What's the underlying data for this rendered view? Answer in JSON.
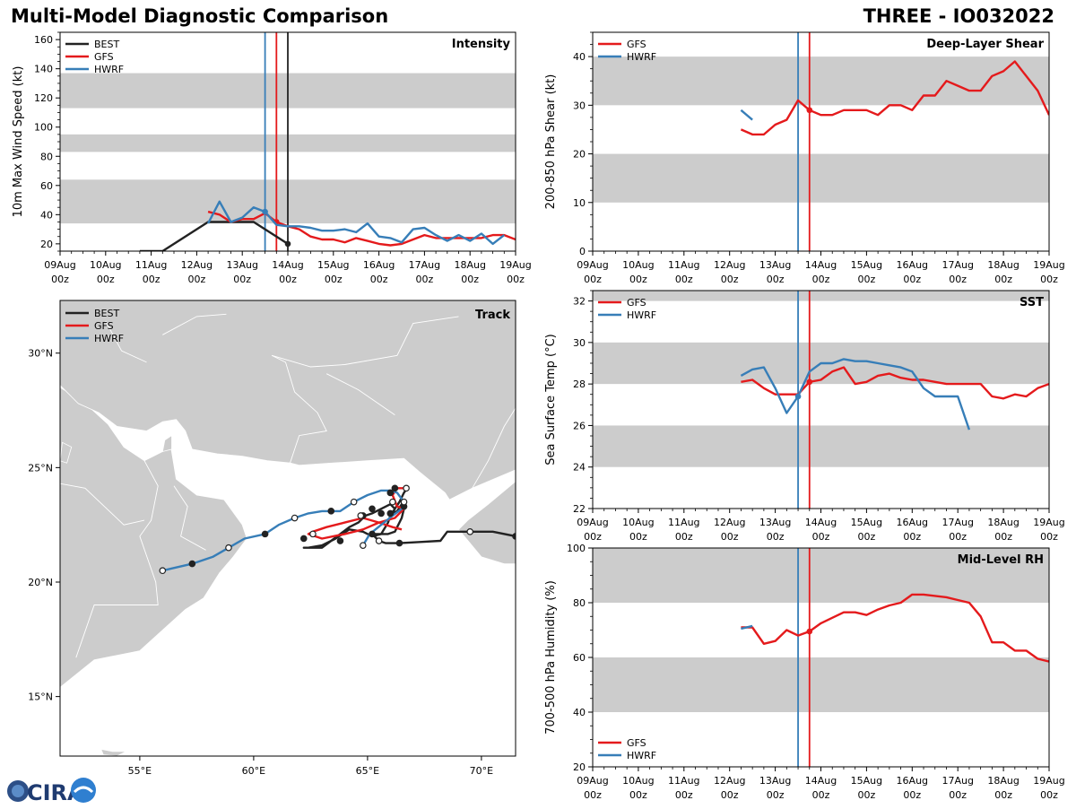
{
  "header": {
    "title": "Multi-Model Diagnostic Comparison",
    "storm": "THREE - IO032022"
  },
  "colors": {
    "BEST": "#222222",
    "GFS": "#e41a1c",
    "HWRF": "#377eb8",
    "band": "#cccccc",
    "land": "#cccccc"
  },
  "time_axis": {
    "labels": [
      [
        "09Aug",
        "00z"
      ],
      [
        "10Aug",
        "00z"
      ],
      [
        "11Aug",
        "00z"
      ],
      [
        "12Aug",
        "00z"
      ],
      [
        "13Aug",
        "00z"
      ],
      [
        "14Aug",
        "00z"
      ],
      [
        "15Aug",
        "00z"
      ],
      [
        "16Aug",
        "00z"
      ],
      [
        "17Aug",
        "00z"
      ],
      [
        "18Aug",
        "00z"
      ],
      [
        "19Aug",
        "00z"
      ]
    ]
  },
  "legend_labels": {
    "BEST": "BEST",
    "GFS": "GFS",
    "HWRF": "HWRF"
  },
  "logo": {
    "text": "CIRA"
  },
  "chart_data": [
    {
      "id": "intensity",
      "type": "line",
      "title": "Intensity",
      "ylabel": "10m Max Wind Speed (kt)",
      "xlim": [
        0,
        10
      ],
      "ylim": [
        15,
        165
      ],
      "yticks": [
        20,
        40,
        60,
        80,
        100,
        120,
        140,
        160
      ],
      "bands": [
        [
          34,
          64
        ],
        [
          83,
          95
        ],
        [
          113,
          137
        ]
      ],
      "vlines": [
        {
          "x": 4.5,
          "series": "HWRF"
        },
        {
          "x": 4.75,
          "series": "GFS"
        },
        {
          "x": 5.0,
          "series": "BEST"
        }
      ],
      "legend": [
        "BEST",
        "GFS",
        "HWRF"
      ],
      "legend_pos": "top-left",
      "series": [
        {
          "name": "BEST",
          "x": [
            1.75,
            2.25,
            3.25,
            4.25,
            5.0
          ],
          "y": [
            15,
            15,
            35,
            35,
            20
          ],
          "markers": [
            {
              "x": 5.0,
              "y": 20
            }
          ]
        },
        {
          "name": "GFS",
          "x": [
            3.25,
            3.5,
            3.75,
            4.0,
            4.25,
            4.5,
            4.75,
            5.0,
            5.25,
            5.5,
            5.75,
            6.0,
            6.25,
            6.5,
            6.75,
            7.0,
            7.25,
            7.5,
            7.75,
            8.0,
            8.25,
            8.5,
            8.75,
            9.0,
            9.25,
            9.5,
            9.75,
            10.0
          ],
          "y": [
            42,
            40,
            35,
            37,
            37,
            41,
            35,
            32,
            30,
            25,
            23,
            23,
            21,
            24,
            22,
            20,
            19,
            20,
            23,
            26,
            24,
            24,
            24,
            24,
            24,
            26,
            26,
            23
          ],
          "markers": [
            {
              "x": 4.75,
              "y": 35
            }
          ]
        },
        {
          "name": "HWRF",
          "x": [
            3.25,
            3.5,
            3.75,
            4.0,
            4.25,
            4.5,
            4.75,
            5.0,
            5.25,
            5.5,
            5.75,
            6.0,
            6.25,
            6.5,
            6.75,
            7.0,
            7.25,
            7.5,
            7.75,
            8.0,
            8.25,
            8.5,
            8.75,
            9.0,
            9.25,
            9.5,
            9.75
          ],
          "y": [
            34,
            49,
            35,
            38,
            45,
            42,
            33,
            32,
            32,
            31,
            29,
            29,
            30,
            28,
            34,
            25,
            24,
            21,
            30,
            31,
            26,
            22,
            26,
            22,
            27,
            20,
            26
          ],
          "markers": [
            {
              "x": 4.5,
              "y": 42
            }
          ]
        }
      ]
    },
    {
      "id": "shear",
      "type": "line",
      "title": "Deep-Layer Shear",
      "ylabel": "200-850 hPa Shear (kt)",
      "xlim": [
        0,
        10
      ],
      "ylim": [
        0,
        45
      ],
      "yticks": [
        0,
        10,
        20,
        30,
        40
      ],
      "bands": [
        [
          10,
          20
        ],
        [
          30,
          40
        ]
      ],
      "vlines": [
        {
          "x": 4.5,
          "series": "HWRF"
        },
        {
          "x": 4.75,
          "series": "GFS"
        }
      ],
      "legend": [
        "GFS",
        "HWRF"
      ],
      "legend_pos": "top-left",
      "series": [
        {
          "name": "GFS",
          "x": [
            3.25,
            3.5,
            3.75,
            4.0,
            4.25,
            4.5,
            4.75,
            5.0,
            5.25,
            5.5,
            5.75,
            6.0,
            6.25,
            6.5,
            6.75,
            7.0,
            7.25,
            7.5,
            7.75,
            8.0,
            8.25,
            8.5,
            8.75,
            9.0,
            9.25,
            9.5,
            9.75,
            10.0
          ],
          "y": [
            25,
            24,
            24,
            26,
            27,
            31,
            29,
            28,
            28,
            29,
            29,
            29,
            28,
            30,
            30,
            29,
            32,
            32,
            35,
            34,
            33,
            33,
            36,
            37,
            39,
            36,
            33,
            28
          ],
          "markers": [
            {
              "x": 4.75,
              "y": 29
            }
          ]
        },
        {
          "name": "HWRF",
          "x": [
            3.25,
            3.5
          ],
          "y": [
            29,
            27
          ],
          "markers": []
        }
      ]
    },
    {
      "id": "sst",
      "type": "line",
      "title": "SST",
      "ylabel": "Sea Surface Temp (°C)",
      "xlim": [
        0,
        10
      ],
      "ylim": [
        22,
        32.5
      ],
      "yticks": [
        22,
        24,
        26,
        28,
        30,
        32
      ],
      "bands": [
        [
          24,
          26
        ],
        [
          28,
          30
        ],
        [
          32,
          34
        ]
      ],
      "vlines": [
        {
          "x": 4.5,
          "series": "HWRF"
        },
        {
          "x": 4.75,
          "series": "GFS"
        }
      ],
      "legend": [
        "GFS",
        "HWRF"
      ],
      "legend_pos": "top-left",
      "series": [
        {
          "name": "GFS",
          "x": [
            3.25,
            3.5,
            3.75,
            4.0,
            4.25,
            4.5,
            4.75,
            5.0,
            5.25,
            5.5,
            5.75,
            6.0,
            6.25,
            6.5,
            6.75,
            7.0,
            7.25,
            7.5,
            7.75,
            8.0,
            8.25,
            8.5,
            8.75,
            9.0,
            9.25,
            9.5,
            9.75,
            10.0
          ],
          "y": [
            28.1,
            28.2,
            27.8,
            27.5,
            27.5,
            27.5,
            28.1,
            28.2,
            28.6,
            28.8,
            28.0,
            28.1,
            28.4,
            28.5,
            28.3,
            28.2,
            28.2,
            28.1,
            28.0,
            28.0,
            28.0,
            28.0,
            27.4,
            27.3,
            27.5,
            27.4,
            27.8,
            28.0
          ],
          "markers": [
            {
              "x": 4.75,
              "y": 28.1
            }
          ]
        },
        {
          "name": "HWRF",
          "x": [
            3.25,
            3.5,
            3.75,
            4.0,
            4.25,
            4.5,
            4.75,
            5.0,
            5.25,
            5.5,
            5.75,
            6.0,
            6.25,
            6.5,
            6.75,
            7.0,
            7.25,
            7.5,
            7.75,
            8.0,
            8.25
          ],
          "y": [
            28.4,
            28.7,
            28.8,
            27.8,
            26.6,
            27.4,
            28.6,
            29.0,
            29.0,
            29.2,
            29.1,
            29.1,
            29.0,
            28.9,
            28.8,
            28.6,
            27.8,
            27.4,
            27.4,
            27.4,
            25.8
          ],
          "markers": [
            {
              "x": 4.5,
              "y": 27.4
            }
          ]
        }
      ]
    },
    {
      "id": "rh",
      "type": "line",
      "title": "Mid-Level RH",
      "ylabel": "700-500 hPa Humidity (%)",
      "xlim": [
        0,
        10
      ],
      "ylim": [
        20,
        100
      ],
      "yticks": [
        20,
        40,
        60,
        80,
        100
      ],
      "bands": [
        [
          40,
          60
        ],
        [
          80,
          100
        ]
      ],
      "vlines": [
        {
          "x": 4.5,
          "series": "HWRF"
        },
        {
          "x": 4.75,
          "series": "GFS"
        }
      ],
      "legend": [
        "GFS",
        "HWRF"
      ],
      "legend_pos": "bottom-left",
      "series": [
        {
          "name": "GFS",
          "x": [
            3.25,
            3.5,
            3.75,
            4.0,
            4.25,
            4.5,
            4.75,
            5.0,
            5.25,
            5.5,
            5.75,
            6.0,
            6.25,
            6.5,
            6.75,
            7.0,
            7.25,
            7.5,
            7.75,
            8.0,
            8.25,
            8.5,
            8.75,
            9.0,
            9.25,
            9.5,
            9.75,
            10.0
          ],
          "y": [
            71,
            71,
            65,
            66,
            70,
            68,
            69.5,
            72.5,
            74.5,
            76.5,
            76.5,
            75.5,
            77.5,
            79,
            80,
            83,
            83,
            82.5,
            82,
            81,
            80,
            75,
            65.5,
            65.5,
            62.5,
            62.5,
            59.5,
            58.5
          ],
          "markers": [
            {
              "x": 4.75,
              "y": 69.5
            }
          ]
        },
        {
          "name": "HWRF",
          "x": [
            3.25,
            3.5
          ],
          "y": [
            70.5,
            71.5
          ],
          "markers": []
        }
      ]
    },
    {
      "id": "track",
      "type": "map",
      "title": "Track",
      "lon_range": [
        51.5,
        71.5
      ],
      "lat_range": [
        12.4,
        32.3
      ],
      "xticks": [
        {
          "v": 55,
          "label": "55°E"
        },
        {
          "v": 60,
          "label": "60°E"
        },
        {
          "v": 65,
          "label": "65°E"
        },
        {
          "v": 70,
          "label": "70°E"
        }
      ],
      "yticks": [
        {
          "v": 15,
          "label": "15°N"
        },
        {
          "v": 20,
          "label": "20°N"
        },
        {
          "v": 25,
          "label": "25°N"
        },
        {
          "v": 30,
          "label": "30°N"
        }
      ],
      "legend": [
        "BEST",
        "GFS",
        "HWRF"
      ],
      "legend_pos": "top-left",
      "series": [
        {
          "name": "BEST",
          "lon": [
            71.5,
            70.5,
            69.5,
            68.5,
            68.2,
            67.3,
            66.4,
            65.8,
            65.5,
            65.2,
            65.9,
            66.2,
            66.5,
            66.6,
            66.5,
            66.3,
            66.1,
            66.2,
            66.0,
            65.6,
            65.2,
            64.9,
            64.6,
            64.2,
            63.8,
            63.4,
            63.0,
            62.6,
            62.2,
            62.4,
            63.0,
            63.6,
            64.2,
            64.8,
            65.2,
            65.6,
            65.9,
            66.0,
            66.4,
            66.6,
            66.8
          ],
          "lat": [
            22.0,
            22.2,
            22.2,
            22.2,
            21.8,
            21.75,
            21.7,
            21.7,
            21.8,
            22.1,
            22.1,
            22.2,
            22.8,
            23.2,
            23.4,
            23.1,
            23.0,
            23.2,
            23.4,
            23.2,
            23.0,
            22.9,
            22.6,
            22.4,
            22.1,
            21.8,
            21.5,
            21.5,
            21.5,
            21.5,
            21.6,
            21.9,
            22.3,
            22.2,
            22.0,
            22.1,
            22.6,
            22.9,
            23.5,
            23.9,
            24.2
          ],
          "markers": [
            [
              71.5,
              22.0,
              "filled"
            ],
            [
              69.5,
              22.2,
              "open"
            ],
            [
              66.4,
              21.7,
              "filled"
            ],
            [
              65.5,
              21.8,
              "open"
            ],
            [
              66.0,
              23.0,
              "filled"
            ],
            [
              65.6,
              23.0,
              "filled"
            ],
            [
              65.2,
              23.2,
              "filled"
            ],
            [
              64.8,
              22.9,
              "filled"
            ],
            [
              63.4,
              23.1,
              "filled"
            ],
            [
              63.8,
              21.8,
              "filled"
            ],
            [
              62.2,
              21.9,
              "filled"
            ],
            [
              66.2,
              24.1,
              "filled"
            ],
            [
              66.0,
              23.9,
              "filled"
            ],
            [
              66.6,
              23.3,
              "filled"
            ],
            [
              65.2,
              22.1,
              "filled"
            ]
          ]
        },
        {
          "name": "GFS",
          "lon": [
            66.7,
            66.3,
            66.1,
            66.3,
            66.6,
            66.4,
            66.2,
            65.5,
            64.8,
            64.0,
            63.0,
            62.4,
            62.6,
            63.2,
            64.0,
            64.8,
            65.5,
            66.1,
            66.5
          ],
          "lat": [
            24.1,
            24.1,
            23.8,
            23.3,
            23.2,
            23.0,
            22.8,
            22.6,
            22.3,
            22.1,
            21.9,
            22.1,
            22.2,
            22.4,
            22.6,
            22.8,
            22.6,
            22.4,
            22.3
          ],
          "markers": [
            [
              66.7,
              24.1,
              "open"
            ],
            [
              62.6,
              22.1,
              "open"
            ],
            [
              66.1,
              23.5,
              "open"
            ],
            [
              64.7,
              22.9,
              "open"
            ]
          ]
        },
        {
          "name": "HWRF",
          "lon": [
            56.0,
            57.3,
            58.2,
            58.9,
            59.6,
            60.5,
            61.1,
            61.8,
            62.4,
            63.0,
            63.8,
            64.4,
            65.0,
            65.6,
            66.0,
            66.3,
            66.6,
            66.5,
            66.1,
            65.6,
            65.1,
            64.8,
            64.9
          ],
          "lat": [
            20.5,
            20.8,
            21.1,
            21.5,
            21.9,
            22.1,
            22.5,
            22.8,
            23.0,
            23.1,
            23.1,
            23.5,
            23.8,
            24.0,
            24.0,
            23.9,
            23.5,
            23.2,
            22.9,
            22.5,
            22.1,
            21.6,
            21.6
          ],
          "markers": [
            [
              56.0,
              20.5,
              "open"
            ],
            [
              57.3,
              20.8,
              "filled"
            ],
            [
              58.9,
              21.5,
              "open"
            ],
            [
              60.5,
              22.1,
              "filled"
            ],
            [
              61.8,
              22.8,
              "open"
            ],
            [
              64.4,
              23.5,
              "open"
            ],
            [
              66.6,
              23.5,
              "open"
            ],
            [
              64.8,
              21.6,
              "open"
            ]
          ]
        }
      ]
    }
  ]
}
